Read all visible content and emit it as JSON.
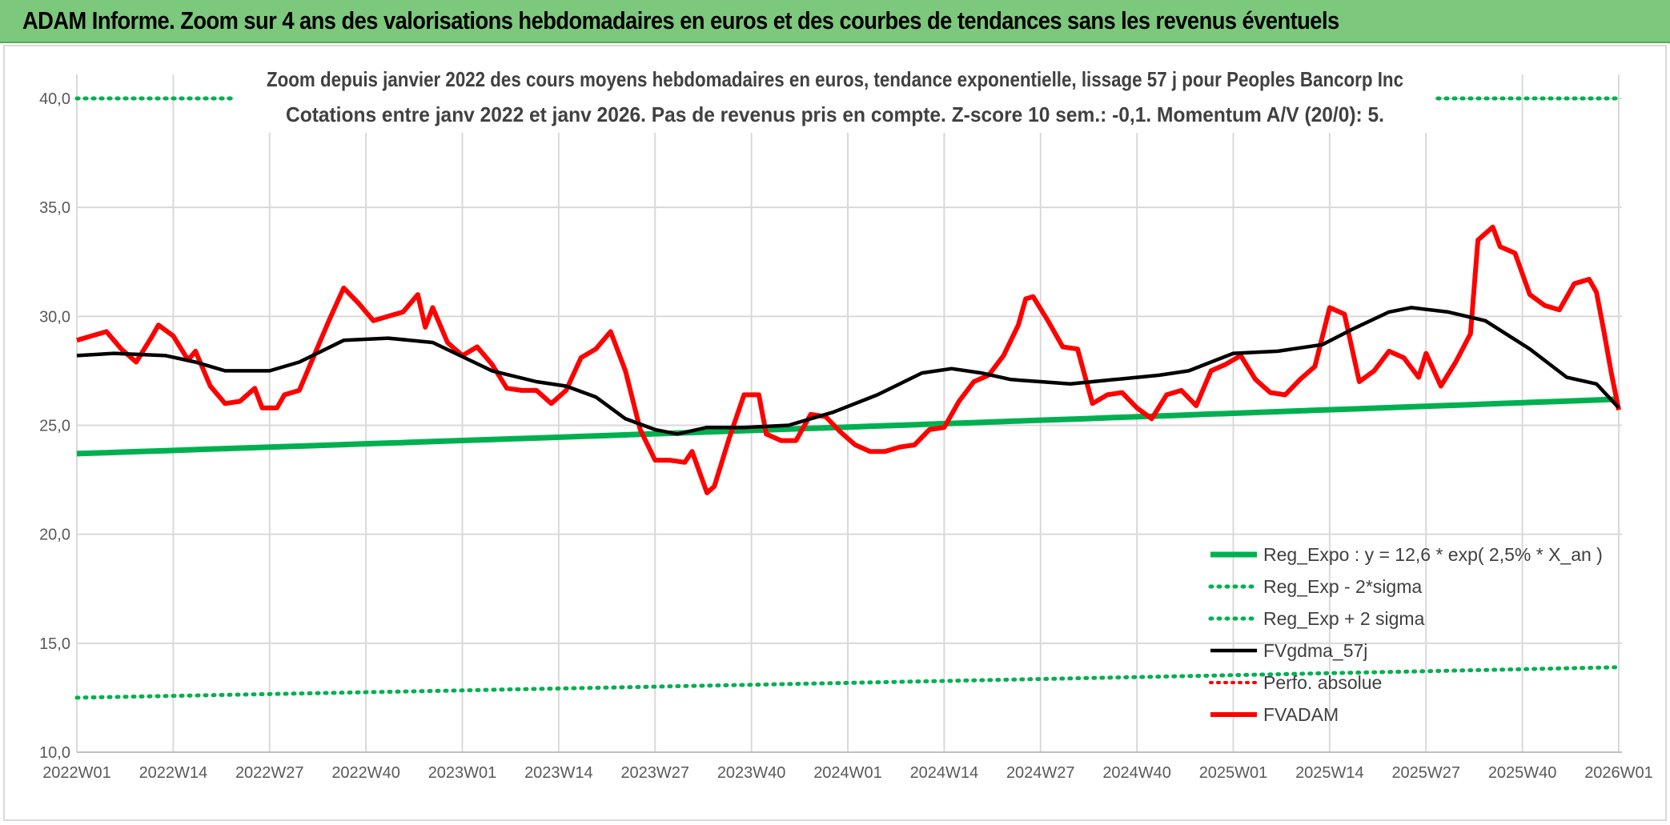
{
  "header": {
    "title": "ADAM Informe. Zoom sur 4 ans des valorisations hebdomadaires en euros et des courbes de tendances sans les revenus éventuels"
  },
  "colors": {
    "banner": "#7cc87c",
    "reg_expo": "#00b050",
    "sigma": "#00b050",
    "fvgdma": "#000000",
    "perfo": "#ff0000",
    "fvadam": "#ff0000",
    "grid": "#d9d9d9"
  },
  "chart_data": {
    "type": "line",
    "title_line1": "Zoom depuis janvier 2022 des cours moyens hebdomadaires en euros, tendance exponentielle, lissage 57 j pour Peoples Bancorp Inc",
    "title_line2": "Cotations entre janv 2022 et janv 2026. Pas de revenus pris en compte. Z-score 10 sem.: -0,1. Momentum A/V (20/0): 5.",
    "ylim": [
      10,
      40
    ],
    "yticks": [
      "10,0",
      "15,0",
      "20,0",
      "25,0",
      "30,0",
      "35,0",
      "40,0"
    ],
    "ytick_values": [
      10,
      15,
      20,
      25,
      30,
      35,
      40
    ],
    "x_count": 209,
    "xtick_labels": [
      "2022W01",
      "2022W14",
      "2022W27",
      "2022W40",
      "2023W01",
      "2023W14",
      "2023W27",
      "2023W40",
      "2024W01",
      "2024W14",
      "2024W27",
      "2024W40",
      "2025W01",
      "2025W14",
      "2025W27",
      "2025W40",
      "2026W01"
    ],
    "xtick_index": [
      0,
      13,
      26,
      39,
      52,
      65,
      78,
      91,
      104,
      117,
      130,
      143,
      156,
      169,
      182,
      195,
      208
    ],
    "legend": [
      {
        "key": "reg_expo",
        "label": "Reg_Expo : y = 12,6 * exp( 2,5% *  X_an )"
      },
      {
        "key": "sigma_minus",
        "label": "Reg_Exp - 2*sigma"
      },
      {
        "key": "sigma_plus",
        "label": "Reg_Exp + 2 sigma"
      },
      {
        "key": "fvgdma",
        "label": "FVgdma_57j"
      },
      {
        "key": "perfo",
        "label": "Perfo. absolue"
      },
      {
        "key": "fvadam",
        "label": "FVADAM"
      }
    ],
    "series": [
      {
        "name": "Reg_Expo",
        "line": "solid",
        "start": 23.7,
        "end": 26.2
      },
      {
        "name": "Reg_Exp - 2*sigma",
        "line": "dotted",
        "start": 12.5,
        "end": 13.9
      },
      {
        "name": "Reg_Exp + 2 sigma",
        "line": "dotted",
        "start": 40.0,
        "end": 40.0
      },
      {
        "name": "FVgdma_57j",
        "line": "solid",
        "points": [
          [
            0,
            28.2
          ],
          [
            5,
            28.3
          ],
          [
            12,
            28.2
          ],
          [
            16,
            27.9
          ],
          [
            20,
            27.5
          ],
          [
            26,
            27.5
          ],
          [
            30,
            27.9
          ],
          [
            36,
            28.9
          ],
          [
            42,
            29.0
          ],
          [
            48,
            28.8
          ],
          [
            56,
            27.5
          ],
          [
            62,
            27.0
          ],
          [
            66,
            26.8
          ],
          [
            70,
            26.3
          ],
          [
            74,
            25.3
          ],
          [
            78,
            24.8
          ],
          [
            81,
            24.6
          ],
          [
            85,
            24.9
          ],
          [
            90,
            24.9
          ],
          [
            96,
            25.0
          ],
          [
            102,
            25.6
          ],
          [
            108,
            26.4
          ],
          [
            114,
            27.4
          ],
          [
            118,
            27.6
          ],
          [
            122,
            27.4
          ],
          [
            126,
            27.1
          ],
          [
            130,
            27.0
          ],
          [
            134,
            26.9
          ],
          [
            140,
            27.1
          ],
          [
            146,
            27.3
          ],
          [
            150,
            27.5
          ],
          [
            156,
            28.3
          ],
          [
            162,
            28.4
          ],
          [
            168,
            28.7
          ],
          [
            172,
            29.4
          ],
          [
            177,
            30.2
          ],
          [
            180,
            30.4
          ],
          [
            185,
            30.2
          ],
          [
            190,
            29.8
          ],
          [
            196,
            28.5
          ],
          [
            201,
            27.2
          ],
          [
            205,
            26.9
          ],
          [
            208,
            25.8
          ]
        ]
      },
      {
        "name": "FVADAM",
        "line": "solid",
        "points": [
          [
            0,
            28.9
          ],
          [
            2,
            29.1
          ],
          [
            4,
            29.3
          ],
          [
            6,
            28.5
          ],
          [
            8,
            27.9
          ],
          [
            10,
            29.0
          ],
          [
            11,
            29.6
          ],
          [
            13,
            29.1
          ],
          [
            15,
            28.0
          ],
          [
            16,
            28.4
          ],
          [
            18,
            26.8
          ],
          [
            20,
            26.0
          ],
          [
            22,
            26.1
          ],
          [
            24,
            26.7
          ],
          [
            25,
            25.8
          ],
          [
            27,
            25.8
          ],
          [
            28,
            26.4
          ],
          [
            30,
            26.6
          ],
          [
            32,
            28.2
          ],
          [
            34,
            29.8
          ],
          [
            36,
            31.3
          ],
          [
            38,
            30.6
          ],
          [
            40,
            29.8
          ],
          [
            42,
            30.0
          ],
          [
            44,
            30.2
          ],
          [
            46,
            31.0
          ],
          [
            47,
            29.5
          ],
          [
            48,
            30.4
          ],
          [
            50,
            28.8
          ],
          [
            52,
            28.2
          ],
          [
            54,
            28.6
          ],
          [
            56,
            27.8
          ],
          [
            58,
            26.7
          ],
          [
            60,
            26.6
          ],
          [
            62,
            26.6
          ],
          [
            64,
            26.0
          ],
          [
            66,
            26.6
          ],
          [
            68,
            28.1
          ],
          [
            70,
            28.5
          ],
          [
            72,
            29.3
          ],
          [
            74,
            27.5
          ],
          [
            76,
            24.8
          ],
          [
            78,
            23.4
          ],
          [
            80,
            23.4
          ],
          [
            82,
            23.3
          ],
          [
            83,
            23.8
          ],
          [
            85,
            21.9
          ],
          [
            86,
            22.2
          ],
          [
            88,
            24.4
          ],
          [
            90,
            26.4
          ],
          [
            92,
            26.4
          ],
          [
            93,
            24.6
          ],
          [
            95,
            24.3
          ],
          [
            97,
            24.3
          ],
          [
            99,
            25.5
          ],
          [
            101,
            25.4
          ],
          [
            103,
            24.7
          ],
          [
            105,
            24.1
          ],
          [
            107,
            23.8
          ],
          [
            109,
            23.8
          ],
          [
            111,
            24.0
          ],
          [
            113,
            24.1
          ],
          [
            115,
            24.8
          ],
          [
            117,
            24.9
          ],
          [
            119,
            26.1
          ],
          [
            121,
            27.0
          ],
          [
            123,
            27.3
          ],
          [
            125,
            28.2
          ],
          [
            127,
            29.6
          ],
          [
            128,
            30.8
          ],
          [
            129,
            30.9
          ],
          [
            131,
            29.8
          ],
          [
            133,
            28.6
          ],
          [
            135,
            28.5
          ],
          [
            137,
            26.0
          ],
          [
            139,
            26.4
          ],
          [
            141,
            26.5
          ],
          [
            143,
            25.8
          ],
          [
            145,
            25.3
          ],
          [
            147,
            26.4
          ],
          [
            149,
            26.6
          ],
          [
            151,
            25.9
          ],
          [
            153,
            27.5
          ],
          [
            155,
            27.8
          ],
          [
            157,
            28.2
          ],
          [
            159,
            27.1
          ],
          [
            161,
            26.5
          ],
          [
            163,
            26.4
          ],
          [
            165,
            27.1
          ],
          [
            167,
            27.7
          ],
          [
            169,
            30.4
          ],
          [
            171,
            30.1
          ],
          [
            173,
            27.0
          ],
          [
            175,
            27.5
          ],
          [
            177,
            28.4
          ],
          [
            179,
            28.1
          ],
          [
            181,
            27.2
          ],
          [
            182,
            28.3
          ],
          [
            184,
            26.8
          ],
          [
            186,
            27.9
          ],
          [
            188,
            29.2
          ],
          [
            189,
            33.5
          ],
          [
            191,
            34.1
          ],
          [
            192,
            33.2
          ],
          [
            194,
            32.9
          ],
          [
            196,
            31.0
          ],
          [
            198,
            30.5
          ],
          [
            200,
            30.3
          ],
          [
            202,
            31.5
          ],
          [
            204,
            31.7
          ],
          [
            205,
            31.1
          ],
          [
            206,
            29.3
          ],
          [
            207,
            27.4
          ],
          [
            208,
            25.7
          ]
        ]
      }
    ]
  }
}
